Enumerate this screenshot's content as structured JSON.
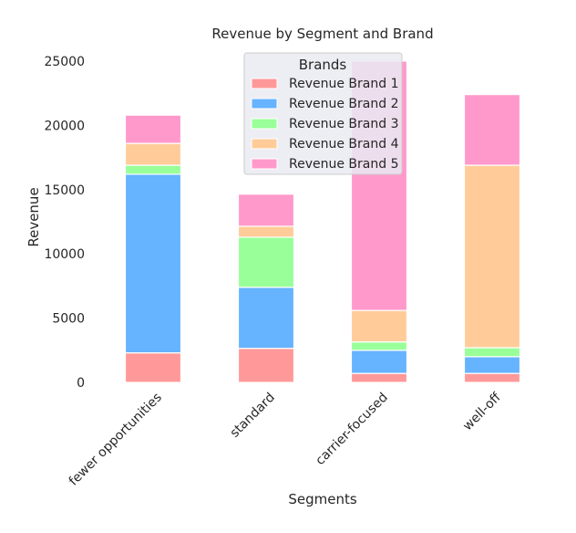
{
  "chart_data": {
    "type": "bar",
    "stacked": true,
    "title": "Revenue by Segment and Brand",
    "xlabel": "Segments",
    "ylabel": "Revenue",
    "categories": [
      "fewer opportunities",
      "standard",
      "carrier-focused",
      "well-off"
    ],
    "ylim": [
      0,
      25000
    ],
    "yticks": [
      0,
      5000,
      10000,
      15000,
      20000,
      25000
    ],
    "grid": false,
    "legend": {
      "title": "Brands",
      "placement": "top-center"
    },
    "series": [
      {
        "name": "Revenue Brand 1",
        "color": "#ff9999",
        "values": [
          2300,
          2650,
          700,
          700
        ]
      },
      {
        "name": "Revenue Brand 2",
        "color": "#66b3ff",
        "values": [
          13900,
          4750,
          1800,
          1300
        ]
      },
      {
        "name": "Revenue Brand 3",
        "color": "#99ff99",
        "values": [
          700,
          3900,
          650,
          700
        ]
      },
      {
        "name": "Revenue Brand 4",
        "color": "#ffcc99",
        "values": [
          1700,
          850,
          2450,
          14200
        ]
      },
      {
        "name": "Revenue Brand 5",
        "color": "#ff99cc",
        "values": [
          2200,
          2500,
          19400,
          5500
        ]
      }
    ]
  }
}
